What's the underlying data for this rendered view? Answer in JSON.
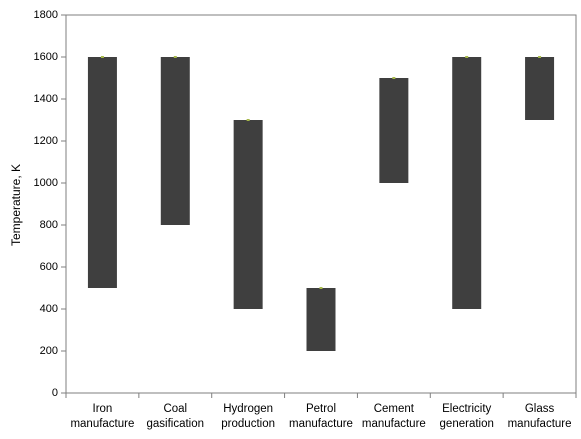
{
  "chart_data": {
    "type": "bar",
    "subtype": "floating-range",
    "categories": [
      [
        "Iron",
        "manufacture"
      ],
      [
        "Coal",
        "gasification"
      ],
      [
        "Hydrogen",
        "production"
      ],
      [
        "Petrol",
        "manufacture"
      ],
      [
        "Cement",
        "manufacture"
      ],
      [
        "Electricity",
        "generation"
      ],
      [
        "Glass",
        "manufacture"
      ]
    ],
    "ranges": [
      [
        500,
        1600
      ],
      [
        800,
        1600
      ],
      [
        400,
        1300
      ],
      [
        200,
        500
      ],
      [
        1000,
        1500
      ],
      [
        400,
        1600
      ],
      [
        1300,
        1600
      ]
    ],
    "xlabel": "",
    "ylabel": "Temperature, K",
    "ylim": [
      0,
      1800
    ],
    "yticks": [
      0,
      200,
      400,
      600,
      800,
      1000,
      1200,
      1400,
      1600,
      1800
    ],
    "grid": false,
    "legend": "none",
    "colors": {
      "bar": "#3f3f3f",
      "marker": "#a6b84a",
      "axis": "#7f7f7f"
    }
  }
}
